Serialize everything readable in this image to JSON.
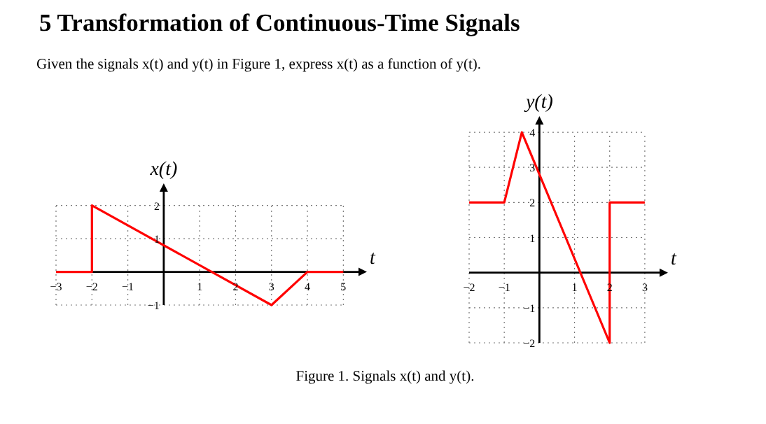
{
  "chart_data": [
    {
      "type": "line",
      "title": "5   Transformation of Continuous-Time Signals",
      "subtitle": "Given the signals x(t) and y(t) in Figure 1, express x(t) as a function of y(t).",
      "annotations": [
        "Figure 1. Signals x(t) and y(t)."
      ],
      "xlabel": "t",
      "ylabel": "x(t)",
      "xlim": [
        -3,
        5.5
      ],
      "ylim": [
        -1,
        2.5
      ],
      "xticks": [
        -3,
        -2,
        -1,
        1,
        2,
        3,
        4,
        5
      ],
      "yticks": [
        -1,
        1,
        2
      ],
      "grid": true,
      "series": [
        {
          "color": "#ff0000",
          "x": [
            -3,
            -2,
            -2,
            3,
            4,
            5
          ],
          "values": [
            0,
            0,
            2,
            -1,
            0,
            0
          ]
        }
      ]
    },
    {
      "type": "line",
      "xlabel": "t",
      "ylabel": "y(t)",
      "xlim": [
        -2,
        3.5
      ],
      "ylim": [
        -2,
        4.3
      ],
      "xticks": [
        -2,
        -1,
        1,
        2,
        3
      ],
      "yticks": [
        -2,
        -1,
        1,
        2,
        3,
        4
      ],
      "grid": true,
      "series": [
        {
          "color": "#ff0000",
          "x": [
            -2,
            -1,
            -0.5,
            2,
            2,
            3
          ],
          "values": [
            2,
            2,
            4,
            -2,
            2,
            2
          ]
        }
      ]
    }
  ]
}
